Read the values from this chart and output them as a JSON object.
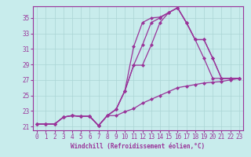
{
  "xlabel": "Windchill (Refroidissement éolien,°C)",
  "bg_color": "#c8ecec",
  "grid_color": "#aad4d4",
  "line_color": "#993399",
  "spine_color": "#993399",
  "xlim": [
    -0.5,
    23.5
  ],
  "ylim": [
    20.5,
    36.5
  ],
  "xticks": [
    0,
    1,
    2,
    3,
    4,
    5,
    6,
    7,
    8,
    9,
    10,
    11,
    12,
    13,
    14,
    15,
    16,
    17,
    18,
    19,
    20,
    21,
    22,
    23
  ],
  "yticks": [
    21,
    23,
    25,
    27,
    29,
    31,
    33,
    35
  ],
  "series": [
    [
      21.3,
      21.3,
      21.3,
      22.2,
      22.4,
      22.3,
      22.3,
      21.1,
      22.4,
      23.2,
      25.6,
      31.3,
      34.4,
      35.0,
      35.1,
      35.7,
      36.3,
      34.4,
      32.2,
      29.8,
      27.2,
      27.2,
      27.2,
      27.2
    ],
    [
      21.3,
      21.3,
      21.3,
      22.2,
      22.4,
      22.3,
      22.3,
      21.1,
      22.4,
      23.2,
      25.6,
      28.9,
      31.5,
      34.4,
      35.0,
      35.7,
      36.3,
      34.4,
      32.2,
      32.2,
      29.8,
      27.2,
      27.2,
      27.2
    ],
    [
      21.3,
      21.3,
      21.3,
      22.2,
      22.4,
      22.3,
      22.3,
      21.1,
      22.4,
      23.2,
      25.6,
      28.9,
      28.9,
      31.5,
      34.4,
      35.7,
      36.3,
      34.4,
      32.2,
      32.2,
      29.8,
      27.2,
      27.2,
      27.2
    ],
    [
      21.3,
      21.3,
      21.3,
      22.2,
      22.4,
      22.3,
      22.3,
      21.1,
      22.4,
      22.4,
      22.9,
      23.3,
      24.0,
      24.5,
      25.0,
      25.5,
      26.0,
      26.2,
      26.4,
      26.6,
      26.7,
      26.8,
      27.0,
      27.2
    ]
  ],
  "tick_fontsize": 5.5,
  "xlabel_fontsize": 5.5,
  "marker": "D",
  "markersize": 2.0,
  "linewidth": 0.9
}
